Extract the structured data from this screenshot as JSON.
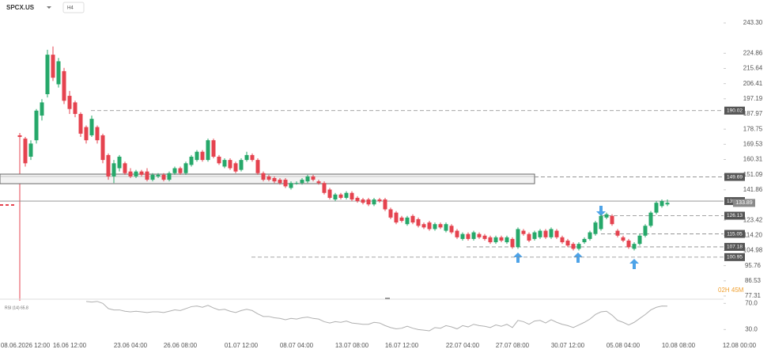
{
  "chart_data": {
    "type": "candlestick",
    "symbol": "SPCX.US",
    "timeframe": "H4",
    "countdown": "02H 45M",
    "rsi_label": "RSI (14) 65.8",
    "up_color": "#26a86a",
    "down_color": "#e5434f",
    "rsi_color": "#b0b0b0",
    "ylim": [
      77.31,
      243.3
    ],
    "yticks": [
      {
        "value": 243.3,
        "label": "243.30"
      },
      224.86,
      215.64,
      206.41,
      197.19,
      187.97,
      178.75,
      169.53,
      160.31,
      151.09,
      141.86,
      123.42,
      {
        "value": 114.2,
        "label": "114.20"
      },
      104.98,
      95.76,
      86.53,
      77.31
    ],
    "levels": [
      190.02,
      149.69,
      135.02,
      126.13,
      115.05,
      107.18,
      100.95
    ],
    "last_price": 133.89,
    "zone": [
      145.6,
      151.4
    ],
    "rsi_ylim": [
      20,
      78
    ],
    "rsi_ticks": [
      {
        "value": 70,
        "label": "70.0"
      },
      {
        "value": 30,
        "label": "30.0"
      }
    ],
    "categories": [
      null,
      "08.06.2026 12:00",
      null,
      null,
      null,
      null,
      null,
      null,
      null,
      "16.06 12:00",
      null,
      null,
      null,
      null,
      null,
      null,
      null,
      null,
      null,
      null,
      "23.06 04:00",
      null,
      null,
      null,
      null,
      null,
      null,
      null,
      null,
      "26.06 08:00",
      null,
      null,
      null,
      null,
      null,
      null,
      null,
      null,
      null,
      null,
      "01.07 12:00",
      null,
      null,
      null,
      null,
      null,
      null,
      null,
      null,
      null,
      "08.07 04:00",
      null,
      null,
      null,
      null,
      null,
      null,
      null,
      null,
      null,
      "13.07 08:00",
      null,
      null,
      null,
      null,
      null,
      null,
      null,
      null,
      "16.07 12:00",
      null,
      null,
      null,
      null,
      null,
      null,
      null,
      null,
      null,
      null,
      "22.07 04:00",
      null,
      null,
      null,
      null,
      null,
      null,
      null,
      null,
      "27.07 08:00",
      null,
      null,
      null,
      null,
      null,
      null,
      null,
      null,
      null,
      "30.07 12:00",
      null,
      null,
      null,
      null,
      null,
      null,
      null,
      null,
      null,
      "05.08 04:00",
      null,
      null,
      null,
      null,
      null,
      null,
      null,
      null,
      null,
      "10.08 08:00",
      null,
      null,
      null,
      null,
      null,
      null,
      null,
      null,
      null,
      null,
      "12.08 00:00"
    ],
    "ohlc": [
      [
        175,
        176,
        173,
        174
      ],
      [
        173,
        174,
        156,
        158
      ],
      [
        162,
        172,
        160,
        170
      ],
      [
        172,
        191,
        170,
        190
      ],
      [
        187,
        197,
        184,
        195
      ],
      [
        200,
        227,
        198,
        224
      ],
      [
        224,
        229,
        208,
        210
      ],
      [
        206,
        222,
        204,
        220
      ],
      [
        214,
        216,
        194,
        196
      ],
      [
        199,
        202,
        188,
        191
      ],
      [
        195,
        196,
        186,
        188
      ],
      [
        188,
        189,
        174,
        176
      ],
      [
        180,
        181,
        170,
        172
      ],
      [
        175,
        187,
        174,
        185
      ],
      [
        180,
        181,
        170,
        172
      ],
      [
        175,
        176,
        158,
        160
      ],
      [
        163,
        164,
        148,
        150
      ],
      [
        150,
        160,
        146,
        158
      ],
      [
        155,
        163,
        153,
        162
      ],
      [
        158,
        159,
        151,
        152
      ],
      [
        153,
        155,
        149,
        150
      ],
      [
        150,
        154,
        149,
        153
      ],
      [
        153,
        154,
        150,
        151
      ],
      [
        153,
        155,
        147,
        148
      ],
      [
        148,
        152,
        147,
        151
      ],
      [
        150,
        152,
        149,
        151
      ],
      [
        151,
        152,
        147,
        148
      ],
      [
        148,
        153,
        147,
        152
      ],
      [
        152,
        156,
        151,
        155
      ],
      [
        155,
        156,
        151,
        152
      ],
      [
        152,
        159,
        151,
        158
      ],
      [
        157,
        163,
        156,
        162
      ],
      [
        160,
        166,
        159,
        165
      ],
      [
        165,
        166,
        159,
        160
      ],
      [
        160,
        173,
        159,
        172
      ],
      [
        172,
        173,
        161,
        162
      ],
      [
        162,
        163,
        157,
        158
      ],
      [
        156,
        161,
        155,
        160
      ],
      [
        160,
        161,
        154,
        155
      ],
      [
        158,
        159,
        152,
        153
      ],
      [
        154,
        161,
        153,
        160
      ],
      [
        160,
        165,
        159,
        163
      ],
      [
        163,
        164,
        159,
        160
      ],
      [
        160,
        161,
        151,
        152
      ],
      [
        152,
        153,
        147,
        148
      ],
      [
        150,
        151,
        147,
        148
      ],
      [
        149,
        150,
        146,
        147
      ],
      [
        148,
        149,
        145,
        146
      ],
      [
        148,
        149,
        143,
        144
      ],
      [
        143,
        147,
        142,
        146
      ],
      [
        146,
        147,
        145,
        146
      ],
      [
        146,
        149,
        145,
        148
      ],
      [
        147,
        151,
        146,
        150
      ],
      [
        150,
        151,
        147,
        148
      ],
      [
        147,
        148,
        145,
        146
      ],
      [
        146,
        147,
        139,
        140
      ],
      [
        142,
        143,
        136,
        137
      ],
      [
        136,
        140,
        135,
        139
      ],
      [
        139,
        140,
        136,
        137
      ],
      [
        137,
        141,
        136,
        140
      ],
      [
        140,
        141,
        135,
        136
      ],
      [
        137,
        138,
        134,
        135
      ],
      [
        136,
        137,
        133,
        134
      ],
      [
        136,
        137,
        132,
        133
      ],
      [
        133,
        137,
        132,
        136
      ],
      [
        136,
        137,
        134,
        135
      ],
      [
        136,
        137,
        129,
        130
      ],
      [
        130,
        131,
        124,
        125
      ],
      [
        128,
        129,
        121,
        122
      ],
      [
        125,
        126,
        122,
        123
      ],
      [
        121,
        126,
        120,
        125
      ],
      [
        126,
        127,
        121,
        122
      ],
      [
        124,
        125,
        119,
        120
      ],
      [
        121,
        122,
        118,
        119
      ],
      [
        122,
        123,
        117,
        118
      ],
      [
        118,
        122,
        117,
        121
      ],
      [
        121,
        122,
        118,
        119
      ],
      [
        117,
        122,
        116,
        121
      ],
      [
        120,
        121,
        115,
        116
      ],
      [
        117,
        118,
        112,
        113
      ],
      [
        112,
        116,
        111,
        115
      ],
      [
        115,
        116,
        111,
        112
      ],
      [
        112,
        117,
        111,
        116
      ],
      [
        115,
        116,
        112,
        113
      ],
      [
        114,
        115,
        111,
        112
      ],
      [
        113,
        114,
        109,
        110
      ],
      [
        110,
        114,
        109,
        113
      ],
      [
        113,
        114,
        110,
        111
      ],
      [
        110,
        114,
        109,
        113
      ],
      [
        112,
        113,
        106,
        107
      ],
      [
        107,
        119,
        106,
        118
      ],
      [
        117,
        118,
        114,
        115
      ],
      [
        115,
        116,
        110,
        111
      ],
      [
        112,
        117,
        111,
        116
      ],
      [
        113,
        118,
        112,
        117
      ],
      [
        117,
        118,
        112,
        113
      ],
      [
        113,
        119,
        112,
        118
      ],
      [
        117,
        118,
        112,
        113
      ],
      [
        113,
        114,
        109,
        110
      ],
      [
        111,
        112,
        107,
        108
      ],
      [
        109,
        110,
        105,
        106
      ],
      [
        106,
        110,
        105,
        109
      ],
      [
        110,
        113,
        109,
        112
      ],
      [
        112,
        117,
        111,
        116
      ],
      [
        115,
        123,
        114,
        122
      ],
      [
        118,
        127,
        117,
        126
      ],
      [
        125,
        128,
        124,
        127
      ],
      [
        126,
        127,
        120,
        121
      ],
      [
        117,
        118,
        113,
        114
      ],
      [
        113,
        114,
        110,
        111
      ],
      [
        111,
        112,
        106,
        107
      ],
      [
        106,
        110,
        105,
        109
      ],
      [
        109,
        115,
        108,
        114
      ],
      [
        114,
        121,
        113,
        120
      ],
      [
        120,
        129,
        119,
        128
      ],
      [
        128,
        135,
        127,
        134
      ],
      [
        132,
        136,
        131,
        135
      ],
      [
        133,
        136,
        132,
        134
      ],
      null,
      null,
      null,
      null,
      null,
      null,
      null,
      null,
      null,
      null,
      null,
      null,
      null
    ],
    "rsi": [
      null,
      null,
      null,
      null,
      null,
      null,
      null,
      null,
      null,
      null,
      null,
      null,
      73,
      72,
      73,
      70,
      62,
      60,
      60,
      58,
      57,
      58,
      57,
      56,
      57,
      57,
      56,
      58,
      60,
      59,
      62,
      65,
      66,
      64,
      67,
      63,
      60,
      61,
      58,
      56,
      59,
      61,
      59,
      54,
      50,
      50,
      48,
      47,
      45,
      47,
      46,
      48,
      49,
      47,
      46,
      42,
      40,
      42,
      41,
      43,
      40,
      39,
      38,
      38,
      41,
      40,
      36,
      33,
      31,
      32,
      35,
      32,
      30,
      29,
      28,
      33,
      32,
      36,
      34,
      31,
      36,
      34,
      38,
      36,
      35,
      33,
      37,
      35,
      38,
      33,
      44,
      42,
      38,
      43,
      44,
      40,
      45,
      41,
      38,
      36,
      33,
      37,
      41,
      46,
      53,
      57,
      58,
      52,
      44,
      41,
      37,
      41,
      47,
      53,
      60,
      64,
      66,
      65.8,
      null,
      null,
      null,
      null,
      null,
      null,
      null,
      null,
      null,
      null,
      null,
      null,
      null
    ]
  }
}
